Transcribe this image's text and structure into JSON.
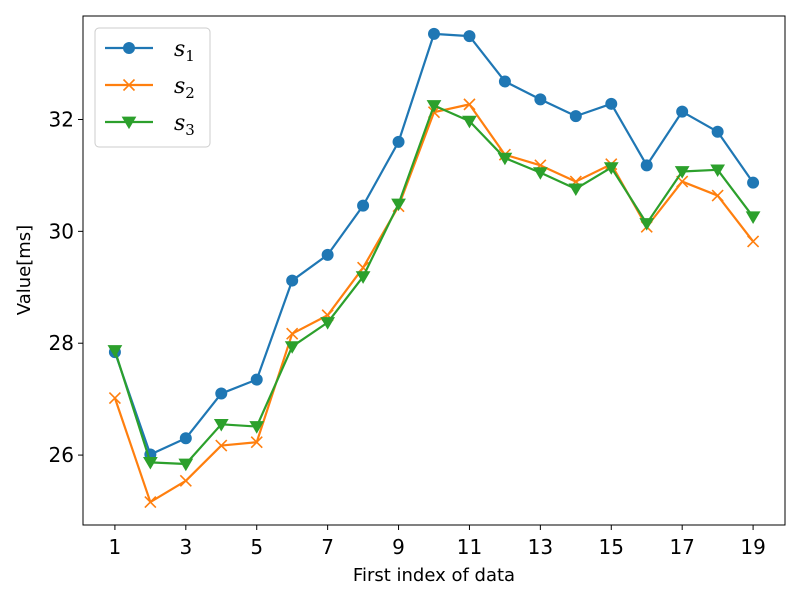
{
  "chart_data": {
    "type": "line",
    "title": "",
    "xlabel": "First index of data",
    "ylabel": "Value[ms]",
    "x": [
      1,
      2,
      3,
      4,
      5,
      6,
      7,
      8,
      9,
      10,
      11,
      12,
      13,
      14,
      15,
      16,
      17,
      18,
      19
    ],
    "xticks": [
      1,
      3,
      5,
      7,
      9,
      11,
      13,
      15,
      17,
      19
    ],
    "yticks": [
      26,
      28,
      30,
      32
    ],
    "xlim": [
      0.1,
      19.9
    ],
    "ylim": [
      24.75,
      33.85
    ],
    "grid": false,
    "legend": "top-left",
    "series": [
      {
        "name": "s",
        "subscript": "1",
        "color": "#1f77b4",
        "marker": "circle",
        "values": [
          27.84,
          26.01,
          26.3,
          27.1,
          27.35,
          29.12,
          29.58,
          30.46,
          31.6,
          33.53,
          33.49,
          32.68,
          32.36,
          32.06,
          32.28,
          31.18,
          32.14,
          31.78,
          30.87
        ]
      },
      {
        "name": "s",
        "subscript": "2",
        "color": "#ff7f0e",
        "marker": "x",
        "values": [
          27.02,
          25.16,
          25.54,
          26.17,
          26.23,
          28.17,
          28.5,
          29.35,
          30.45,
          32.13,
          32.27,
          31.37,
          31.18,
          30.89,
          31.2,
          30.08,
          30.89,
          30.64,
          29.82
        ]
      },
      {
        "name": "s",
        "subscript": "3",
        "color": "#2ca02c",
        "marker": "triangle-down",
        "values": [
          27.87,
          25.87,
          25.84,
          26.55,
          26.51,
          27.94,
          28.37,
          29.19,
          30.49,
          32.25,
          31.97,
          31.31,
          31.05,
          30.76,
          31.14,
          30.14,
          31.07,
          31.1,
          30.26
        ]
      }
    ]
  }
}
